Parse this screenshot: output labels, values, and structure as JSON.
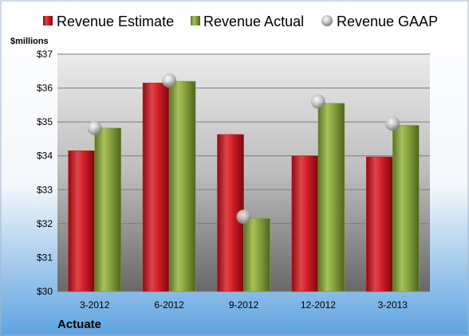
{
  "colors": {
    "estimate": "#d01c24",
    "actual": "#86a13c",
    "gaap": "#b4b4b4"
  },
  "company": "Actuate",
  "chart_data": {
    "type": "bar",
    "ylabel": "$millions",
    "ylim": [
      30,
      37
    ],
    "yticks": [
      "$30",
      "$31",
      "$32",
      "$33",
      "$34",
      "$35",
      "$36",
      "$37"
    ],
    "grid": true,
    "legend": "top",
    "categories": [
      "3-2012",
      "6-2012",
      "9-2012",
      "12-2012",
      "3-2013"
    ],
    "series": [
      {
        "name": "Revenue Estimate",
        "type": "bar",
        "values": [
          34.15,
          36.15,
          34.63,
          34.0,
          33.97
        ]
      },
      {
        "name": "Revenue Actual",
        "type": "bar",
        "values": [
          34.82,
          36.2,
          32.15,
          35.55,
          34.9
        ]
      },
      {
        "name": "Revenue GAAP",
        "type": "scatter",
        "values": [
          34.82,
          36.22,
          32.2,
          35.6,
          34.95
        ]
      }
    ]
  }
}
